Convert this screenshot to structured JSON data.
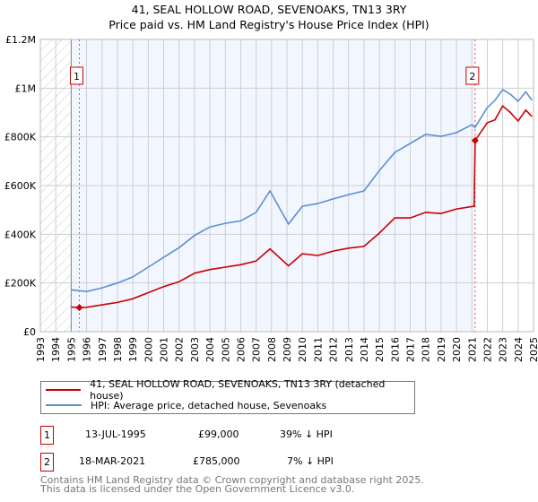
{
  "title_line1": "41, SEAL HOLLOW ROAD, SEVENOAKS, TN13 3RY",
  "title_line2": "Price paid vs. HM Land Registry's House Price Index (HPI)",
  "chart_data": {
    "type": "line",
    "title": "41, SEAL HOLLOW ROAD, SEVENOAKS, TN13 3RY — Price paid vs. HM Land Registry's House Price Index (HPI)",
    "xlim": [
      1993,
      2025
    ],
    "ylim": [
      0,
      1200000
    ],
    "y_ticks": [
      0,
      200000,
      400000,
      600000,
      800000,
      1000000,
      1200000
    ],
    "y_tick_labels": [
      "£0",
      "£200K",
      "£400K",
      "£600K",
      "£800K",
      "£1M",
      "£1.2M"
    ],
    "x_ticks": [
      1993,
      1994,
      1995,
      1996,
      1997,
      1998,
      1999,
      2000,
      2001,
      2002,
      2003,
      2004,
      2005,
      2006,
      2007,
      2008,
      2009,
      2010,
      2011,
      2012,
      2013,
      2014,
      2015,
      2016,
      2017,
      2018,
      2019,
      2020,
      2021,
      2022,
      2023,
      2024,
      2025
    ],
    "grid": true,
    "legend_placement": "below",
    "series": [
      {
        "name": "41, SEAL HOLLOW ROAD, SEVENOAKS, TN13 3RY (detached house)",
        "color": "#cc0000",
        "x": [
          1995.0,
          1995.53,
          1996,
          1997,
          1998,
          1999,
          2000,
          2001,
          2002,
          2003,
          2004,
          2005,
          2006,
          2007,
          2007.9,
          2009.1,
          2010,
          2011,
          2012,
          2013,
          2014,
          2015,
          2016,
          2017,
          2018,
          2019,
          2020,
          2021.15,
          2021.21,
          2022,
          2022.5,
          2023,
          2023.5,
          2024,
          2024.5,
          2024.9
        ],
        "y": [
          101000,
          99000,
          100000,
          110000,
          120000,
          135000,
          160000,
          185000,
          205000,
          240000,
          255000,
          265000,
          275000,
          290000,
          340000,
          270000,
          320000,
          313000,
          331000,
          343000,
          350000,
          405000,
          467000,
          467000,
          490000,
          485000,
          504000,
          515000,
          785000,
          858000,
          870000,
          927000,
          900000,
          865000,
          910000,
          883000
        ]
      },
      {
        "name": "HPI: Average price, detached house, Sevenoaks",
        "color": "#5b8fd4",
        "x": [
          1995.0,
          1996,
          1997,
          1998,
          1999,
          2000,
          2001,
          2002,
          2003,
          2004,
          2005,
          2006,
          2007,
          2007.9,
          2009.1,
          2010,
          2011,
          2012,
          2013,
          2014,
          2015,
          2016,
          2017,
          2018,
          2019,
          2020,
          2021,
          2021.2,
          2022,
          2022.5,
          2023,
          2023.5,
          2024,
          2024.5,
          2024.9
        ],
        "y": [
          172000,
          165000,
          180000,
          200000,
          225000,
          265000,
          305000,
          345000,
          395000,
          430000,
          445000,
          455000,
          490000,
          578000,
          442000,
          515000,
          526000,
          545000,
          563000,
          578000,
          662000,
          736000,
          773000,
          810000,
          802000,
          817000,
          850000,
          839000,
          920000,
          950000,
          994000,
          975000,
          946000,
          985000,
          950000
        ]
      }
    ],
    "annotations": [
      {
        "label": "1",
        "x": 1995.53,
        "y": 99000
      },
      {
        "label": "2",
        "x": 2021.21,
        "y": 785000
      }
    ]
  },
  "legend": {
    "red_label": "41, SEAL HOLLOW ROAD, SEVENOAKS, TN13 3RY (detached house)",
    "blue_label": "HPI: Average price, detached house, Sevenoaks"
  },
  "sales": [
    {
      "num": "1",
      "date": "13-JUL-1995",
      "price": "£99,000",
      "hpi": "39% ↓ HPI"
    },
    {
      "num": "2",
      "date": "18-MAR-2021",
      "price": "£785,000",
      "hpi": "7% ↓ HPI"
    }
  ],
  "footer_line1": "Contains HM Land Registry data © Crown copyright and database right 2025.",
  "footer_line2": "This data is licensed under the Open Government Licence v3.0."
}
